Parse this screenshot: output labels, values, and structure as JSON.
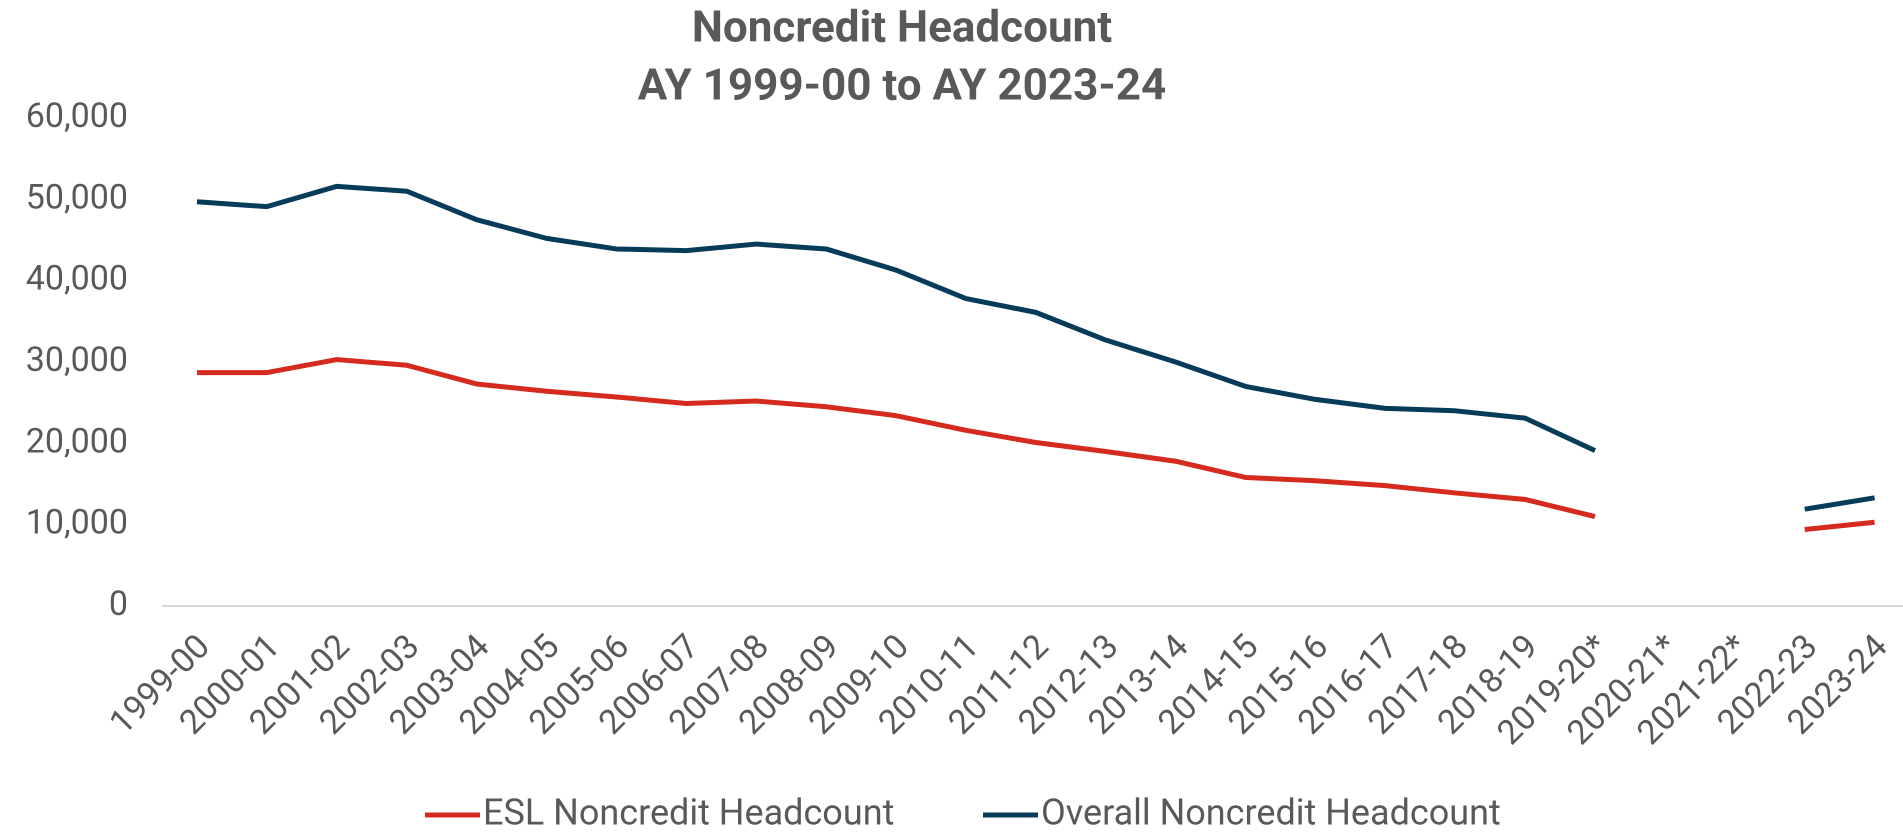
{
  "chart_data": {
    "type": "line",
    "title": "Noncredit Headcount",
    "subtitle": "AY 1999-00 to AY 2023-24",
    "categories": [
      "1999-00",
      "2000-01",
      "2001-02",
      "2002-03",
      "2003-04",
      "2004-05",
      "2005-06",
      "2006-07",
      "2007-08",
      "2008-09",
      "2009-10",
      "2010-11",
      "2011-12",
      "2012-13",
      "2013-14",
      "2014-15",
      "2015-16",
      "2016-17",
      "2017-18",
      "2018-19",
      "2019-20*",
      "2020-21*",
      "2021-22*",
      "2022-23",
      "2023-24"
    ],
    "series": [
      {
        "name": "ESL Noncredit Headcount",
        "color": "#d52b1e",
        "values": [
          28700,
          28700,
          30300,
          29600,
          27300,
          26400,
          25700,
          24900,
          25200,
          24500,
          23400,
          21600,
          20100,
          19000,
          17800,
          15800,
          15400,
          14800,
          13900,
          13100,
          11000,
          null,
          null,
          9400,
          10300
        ]
      },
      {
        "name": "Overall Noncredit Headcount",
        "color": "#073b5a",
        "values": [
          49700,
          49100,
          51600,
          51000,
          47500,
          45200,
          43900,
          43700,
          44500,
          43900,
          41300,
          37800,
          36100,
          32700,
          30000,
          27000,
          25400,
          24300,
          24000,
          23100,
          19100,
          null,
          null,
          11900,
          13300
        ]
      }
    ],
    "ylim": [
      0,
      60000
    ],
    "yticks": [
      0,
      {
        "value": 10000,
        "label": "10,000"
      },
      {
        "value": 20000,
        "label": "20,000"
      },
      {
        "value": 30000,
        "label": "30,000"
      },
      {
        "value": 40000,
        "label": "40,000"
      },
      {
        "value": 50000,
        "label": "50,000"
      },
      {
        "value": 60000,
        "label": "60,000"
      }
    ],
    "legend": "bottom"
  }
}
